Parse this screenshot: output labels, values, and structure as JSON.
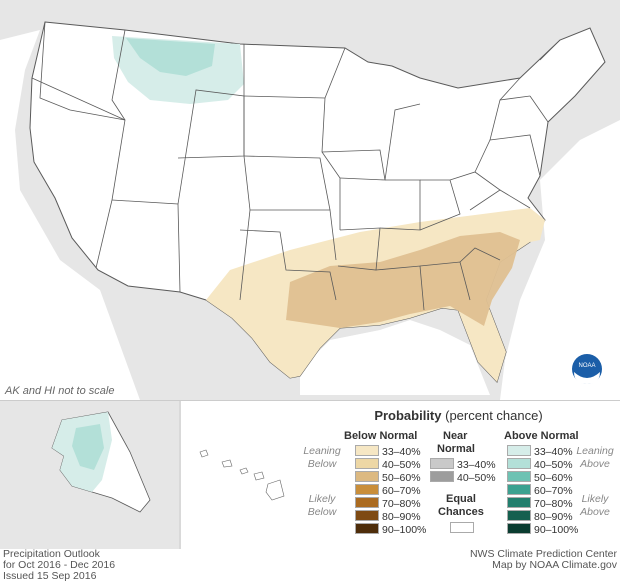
{
  "map_note": "AK and HI not to scale",
  "legend": {
    "title_bold": "Probability",
    "title_rest": " (percent chance)",
    "below_header": "Below Normal",
    "near_header_1": "Near",
    "near_header_2": "Normal",
    "above_header": "Above Normal",
    "leaning_1": "Leaning",
    "below_word": "Below",
    "likely_1": "Likely",
    "above_word": "Above",
    "equal_1": "Equal",
    "equal_2": "Chances",
    "below_rows": [
      {
        "label": "33–40%",
        "color": "#f6e7c4"
      },
      {
        "label": "40–50%",
        "color": "#edd7a5"
      },
      {
        "label": "50–60%",
        "color": "#dcb981"
      },
      {
        "label": "60–70%",
        "color": "#c98e3a"
      },
      {
        "label": "70–80%",
        "color": "#ab6b20"
      },
      {
        "label": "80–90%",
        "color": "#7e4a13"
      },
      {
        "label": "90–100%",
        "color": "#4e2d0a"
      }
    ],
    "near_rows": [
      {
        "label": "33–40%",
        "color": "#c9c9c9"
      },
      {
        "label": "40–50%",
        "color": "#9d9d9d"
      }
    ],
    "above_rows": [
      {
        "label": "33–40%",
        "color": "#d6ede9"
      },
      {
        "label": "40–50%",
        "color": "#b3e0d8"
      },
      {
        "label": "50–60%",
        "color": "#6ec2b3"
      },
      {
        "label": "60–70%",
        "color": "#3ca190"
      },
      {
        "label": "70–80%",
        "color": "#227f6e"
      },
      {
        "label": "80–90%",
        "color": "#15604f"
      },
      {
        "label": "90–100%",
        "color": "#0a3c30"
      }
    ]
  },
  "footer_left": {
    "line1": "Precipitation Outlook",
    "line2": "for Oct 2016 - Dec 2016",
    "line3": "Issued 15 Sep 2016"
  },
  "footer_right": {
    "line1": "NWS Climate Prediction Center",
    "line2": "Map by NOAA Climate.gov"
  },
  "logo_text": "NOAA",
  "colors": {
    "ocean": "#ffffff",
    "land_outside": "#e6e6e6",
    "state_fill": "#ffffff",
    "state_line": "#5a5a5a"
  }
}
